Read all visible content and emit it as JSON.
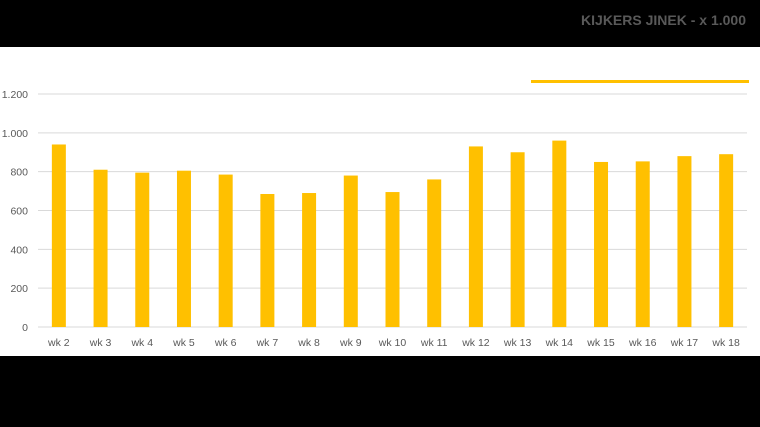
{
  "chart_data": {
    "type": "bar",
    "title": "KIJKERS JINEK - x 1.000",
    "xlabel": "",
    "ylabel": "",
    "categories": [
      "wk 2",
      "wk 3",
      "wk 4",
      "wk 5",
      "wk 6",
      "wk 7",
      "wk 8",
      "wk 9",
      "wk 10",
      "wk 11",
      "wk 12",
      "wk 13",
      "wk 14",
      "wk 15",
      "wk 16",
      "wk 17",
      "wk 18"
    ],
    "values": [
      940,
      810,
      795,
      805,
      785,
      685,
      690,
      780,
      695,
      760,
      930,
      900,
      960,
      850,
      853,
      880,
      890
    ],
    "ylim": [
      0,
      1200
    ],
    "yticks": [
      0,
      200,
      400,
      600,
      800,
      1000,
      1200
    ],
    "ytick_labels": [
      "0",
      "200",
      "400",
      "600",
      "800",
      "1.000",
      "1.200"
    ],
    "grid": true,
    "legend": "none",
    "colors": {
      "bar": "#FFC000",
      "grid": "#D9D9D9",
      "text": "#595959",
      "title_underline": "#FFC000"
    }
  }
}
